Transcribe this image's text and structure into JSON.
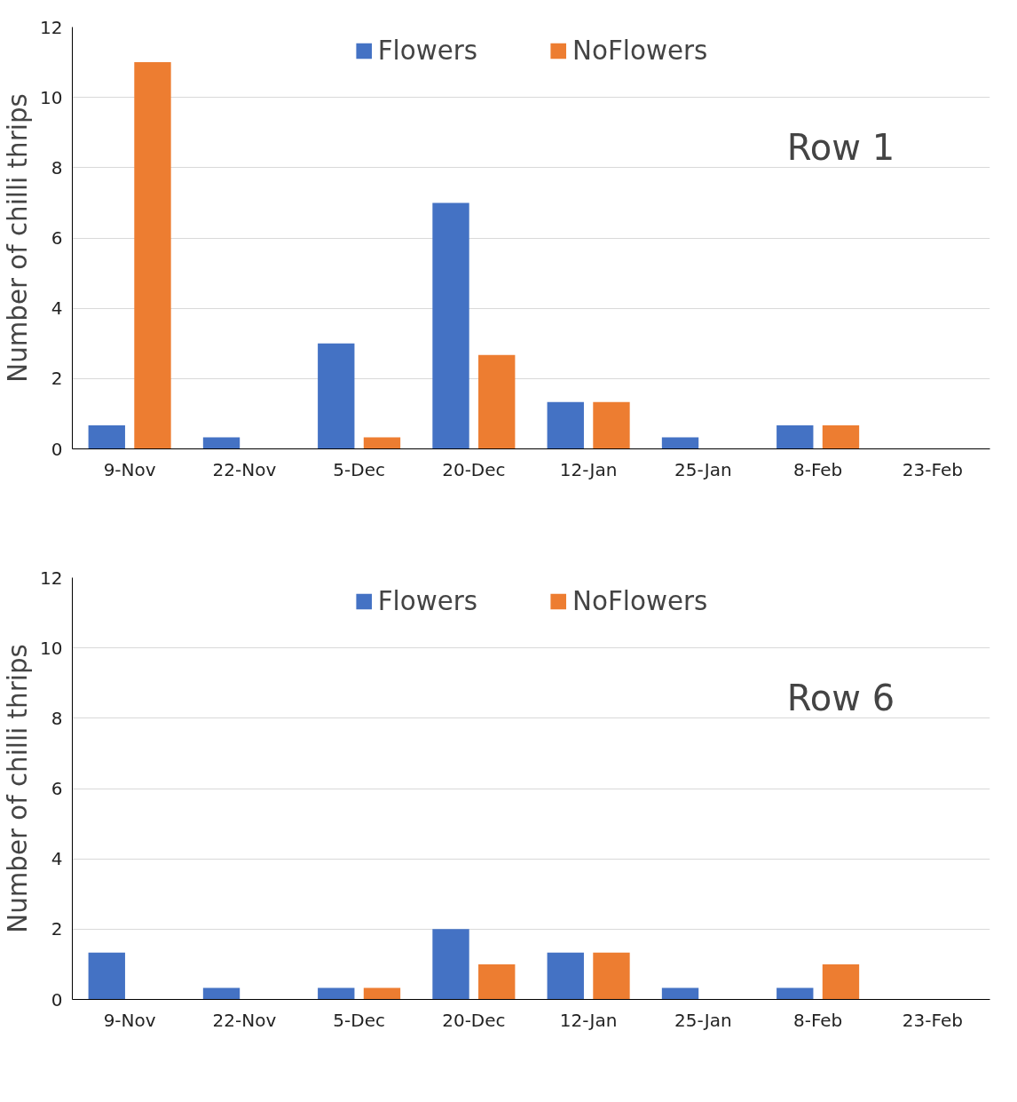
{
  "chart_data": [
    {
      "type": "bar",
      "ylabel": "Number of chilli thrips",
      "categories": [
        "9-Nov",
        "22-Nov",
        "5-Dec",
        "20-Dec",
        "12-Jan",
        "25-Jan",
        "8-Feb",
        "23-Feb"
      ],
      "series": [
        {
          "name": "Flowers",
          "color": "#4472c4",
          "values": [
            0.67,
            0.33,
            3,
            7,
            1.33,
            0.33,
            0.67,
            0
          ]
        },
        {
          "name": "NoFlowers",
          "color": "#ed7d31",
          "values": [
            11,
            0,
            0.33,
            2.67,
            1.33,
            0,
            0.67,
            0
          ]
        }
      ],
      "ylim": [
        0,
        12
      ],
      "yticks": [
        0,
        2,
        4,
        6,
        8,
        10,
        12
      ],
      "grid": "y",
      "legend": "top",
      "annotations": [
        "Row 1"
      ]
    },
    {
      "type": "bar",
      "ylabel": "Number of chilli thrips",
      "categories": [
        "9-Nov",
        "22-Nov",
        "5-Dec",
        "20-Dec",
        "12-Jan",
        "25-Jan",
        "8-Feb",
        "23-Feb"
      ],
      "series": [
        {
          "name": "Flowers",
          "color": "#4472c4",
          "values": [
            1.33,
            0.33,
            0.33,
            2,
            1.33,
            0.33,
            0.33,
            0
          ]
        },
        {
          "name": "NoFlowers",
          "color": "#ed7d31",
          "values": [
            0,
            0,
            0.33,
            1,
            1.33,
            0,
            1,
            0
          ]
        }
      ],
      "ylim": [
        0,
        12
      ],
      "yticks": [
        0,
        2,
        4,
        6,
        8,
        10,
        12
      ],
      "grid": "y",
      "legend": "top",
      "annotations": [
        "Row 6"
      ]
    }
  ]
}
